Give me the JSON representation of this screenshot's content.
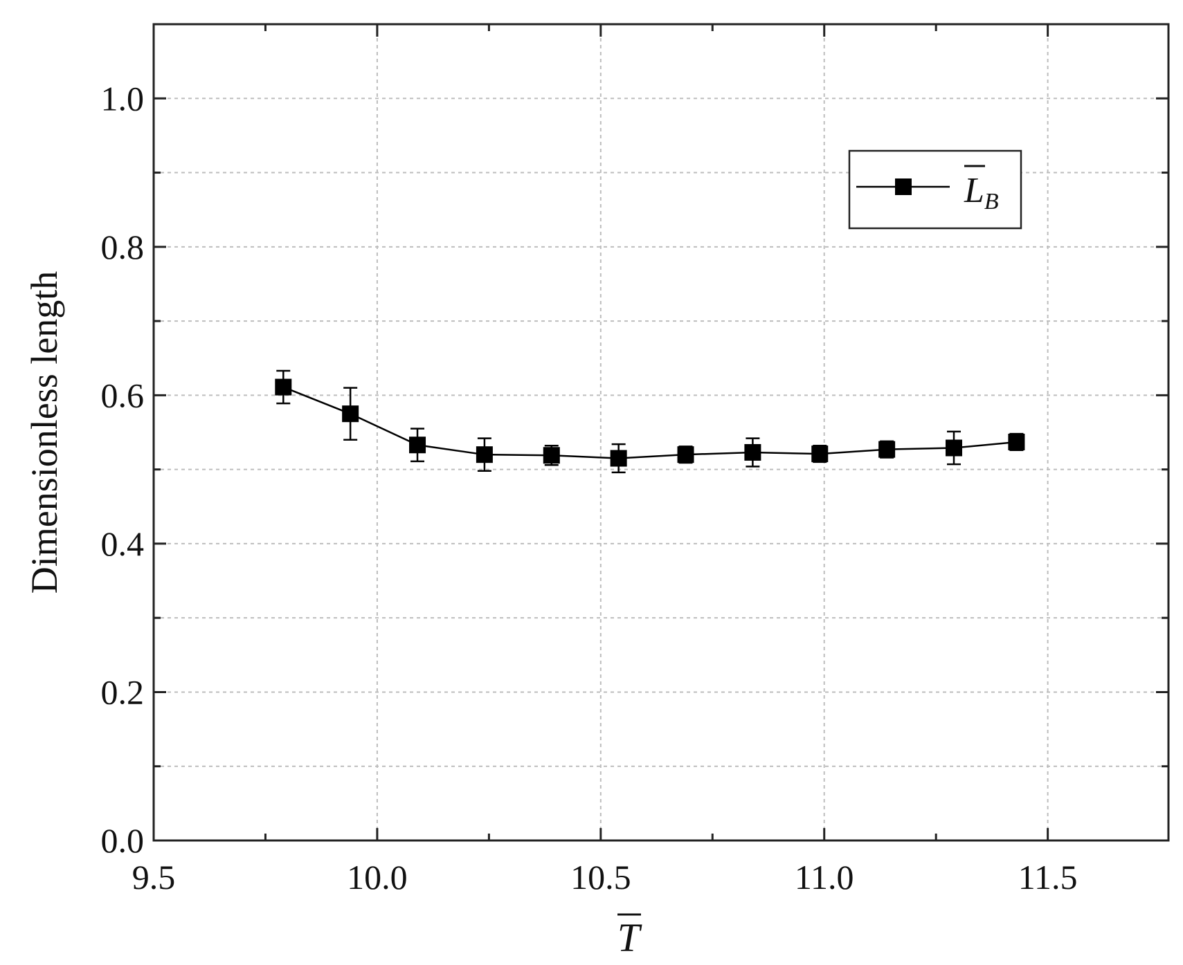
{
  "chart_data": {
    "type": "line",
    "xlabel": "T",
    "xlabel_overbar": true,
    "ylabel": "Dimensionless length",
    "xlim": [
      9.5,
      11.77
    ],
    "ylim": [
      0.0,
      1.1
    ],
    "x_ticks": [
      9.5,
      10.0,
      10.5,
      11.0,
      11.5
    ],
    "x_tick_labels": [
      "9.5",
      "10.0",
      "10.5",
      "11.0",
      "11.5"
    ],
    "x_minor_ticks": [
      9.75,
      10.25,
      10.75,
      11.25
    ],
    "y_ticks": [
      0.0,
      0.2,
      0.4,
      0.6,
      0.8,
      1.0
    ],
    "y_tick_labels": [
      "0.0",
      "0.2",
      "0.4",
      "0.6",
      "0.8",
      "1.0"
    ],
    "y_minor_ticks": [
      0.1,
      0.3,
      0.5,
      0.7,
      0.9
    ],
    "grid": true,
    "legend_position": "top-right",
    "series": [
      {
        "name": "L",
        "name_subscript": "B",
        "name_overbar": true,
        "color": "#000000",
        "marker": "square",
        "x": [
          9.79,
          9.94,
          10.09,
          10.24,
          10.39,
          10.54,
          10.69,
          10.84,
          10.99,
          11.14,
          11.29,
          11.43
        ],
        "y": [
          0.611,
          0.575,
          0.533,
          0.52,
          0.519,
          0.515,
          0.52,
          0.523,
          0.521,
          0.527,
          0.529,
          0.537
        ],
        "error": [
          0.022,
          0.035,
          0.022,
          0.022,
          0.013,
          0.019,
          0.011,
          0.019,
          0.011,
          0.011,
          0.022,
          0.011
        ]
      }
    ]
  }
}
